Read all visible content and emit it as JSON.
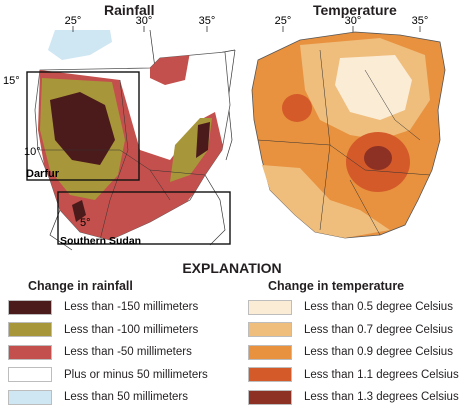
{
  "panels": {
    "rainfall_title": "Rainfall",
    "temperature_title": "Temperature"
  },
  "map_labels": {
    "lon_ticks": [
      "25°",
      "30°",
      "35°"
    ],
    "lat_ticks": [
      "15°",
      "10°",
      "5°"
    ],
    "region_darfur": "Darfur",
    "region_southern_sudan": "Southern Sudan"
  },
  "explanation": {
    "title": "EXPLANATION"
  },
  "rainfall_legend": {
    "heading": "Change in rainfall",
    "items": [
      {
        "label": "Less than -150 millimeters",
        "color": "#4b1a1b"
      },
      {
        "label": "Less than -100 millimeters",
        "color": "#a8963a"
      },
      {
        "label": "Less than -50 millimeters",
        "color": "#c3504c"
      },
      {
        "label": "Plus or minus 50 millimeters",
        "color": "#ffffff"
      },
      {
        "label": "Less than 50 millimeters",
        "color": "#cfe6f3"
      }
    ]
  },
  "temperature_legend": {
    "heading": "Change in temperature",
    "items": [
      {
        "label": "Less than 0.5 degree Celsius",
        "color": "#fbecd6"
      },
      {
        "label": "Less than 0.7 degree Celsius",
        "color": "#efbd7c"
      },
      {
        "label": "Less than 0.9 degree Celsius",
        "color": "#e8913e"
      },
      {
        "label": "Less than 1.1 degrees Celsius",
        "color": "#d45a2a"
      },
      {
        "label": "Less than 1.3 degrees Celsius",
        "color": "#8c3124"
      }
    ]
  }
}
